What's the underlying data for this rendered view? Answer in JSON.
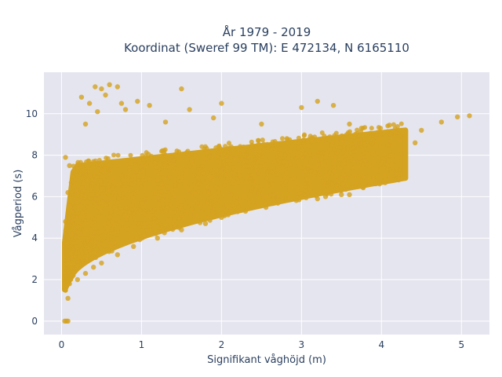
{
  "chart_data": {
    "type": "scatter",
    "title_line1": "År 1979 - 2019",
    "title_line2": "Koordinat (Sweref 99 TM): E 472134, N 6165110",
    "xlabel": "Signifikant våghöjd (m)",
    "ylabel": "Vågperiod (s)",
    "xlim": [
      -0.22,
      5.35
    ],
    "ylim": [
      -0.65,
      12.0
    ],
    "x_ticks": [
      0,
      1,
      2,
      3,
      4,
      5
    ],
    "y_ticks": [
      0,
      2,
      4,
      6,
      8,
      10
    ],
    "grid": true,
    "marker_color": "#D4A320",
    "plot_bg": "#E5E5EF",
    "series": [
      {
        "values": [
          [
            0.04,
            0.0
          ],
          [
            0.06,
            0.0
          ],
          [
            0.08,
            0.0
          ],
          [
            0.05,
            1.5
          ],
          [
            0.06,
            2.5
          ],
          [
            0.07,
            3.5
          ],
          [
            0.05,
            4.8
          ],
          [
            0.08,
            6.2
          ],
          [
            0.1,
            7.5
          ],
          [
            0.08,
            1.1
          ],
          [
            0.1,
            1.8
          ],
          [
            0.2,
            2.0
          ],
          [
            0.3,
            2.3
          ],
          [
            0.4,
            2.6
          ],
          [
            0.5,
            2.8
          ],
          [
            0.7,
            3.2
          ],
          [
            0.9,
            3.6
          ],
          [
            1.2,
            4.0
          ],
          [
            1.5,
            4.4
          ],
          [
            1.8,
            4.7
          ],
          [
            2.0,
            5.0
          ],
          [
            2.3,
            5.3
          ],
          [
            2.6,
            5.7
          ],
          [
            3.0,
            6.0
          ],
          [
            3.2,
            5.9
          ],
          [
            3.5,
            6.1
          ],
          [
            0.3,
            6.0
          ],
          [
            0.5,
            7.0
          ],
          [
            0.7,
            7.5
          ],
          [
            1.0,
            7.8
          ],
          [
            1.3,
            8.0
          ],
          [
            1.6,
            8.0
          ],
          [
            2.0,
            8.2
          ],
          [
            2.5,
            8.4
          ],
          [
            3.0,
            8.6
          ],
          [
            3.5,
            8.8
          ],
          [
            4.0,
            9.0
          ],
          [
            4.2,
            9.1
          ],
          [
            4.5,
            9.2
          ],
          [
            4.75,
            9.6
          ],
          [
            4.95,
            9.85
          ],
          [
            5.1,
            9.9
          ],
          [
            4.42,
            8.6
          ],
          [
            4.27,
            8.8
          ],
          [
            4.08,
            8.5
          ],
          [
            3.8,
            8.1
          ],
          [
            0.3,
            9.5
          ],
          [
            0.45,
            10.1
          ],
          [
            0.35,
            10.5
          ],
          [
            0.42,
            11.3
          ],
          [
            0.5,
            11.2
          ],
          [
            0.6,
            11.4
          ],
          [
            0.7,
            11.3
          ],
          [
            0.55,
            10.9
          ],
          [
            0.75,
            10.5
          ],
          [
            0.95,
            10.6
          ],
          [
            1.1,
            10.4
          ],
          [
            1.5,
            11.2
          ],
          [
            1.6,
            10.2
          ],
          [
            1.9,
            9.8
          ],
          [
            2.0,
            10.5
          ],
          [
            3.0,
            10.3
          ],
          [
            3.2,
            10.6
          ],
          [
            3.4,
            10.4
          ],
          [
            3.6,
            9.5
          ],
          [
            3.75,
            9.3
          ],
          [
            4.1,
            9.45
          ],
          [
            0.25,
            10.8
          ],
          [
            0.8,
            10.2
          ],
          [
            1.3,
            9.6
          ],
          [
            2.5,
            9.5
          ],
          [
            3.05,
            6.3
          ],
          [
            3.3,
            6.0
          ],
          [
            3.6,
            6.1
          ],
          [
            0.05,
            7.9
          ],
          [
            0.65,
            6.5
          ],
          [
            1.2,
            6.8
          ],
          [
            1.7,
            6.7
          ],
          [
            2.2,
            6.9
          ],
          [
            2.7,
            7.3
          ],
          [
            2.9,
            6.7
          ]
        ]
      }
    ]
  }
}
